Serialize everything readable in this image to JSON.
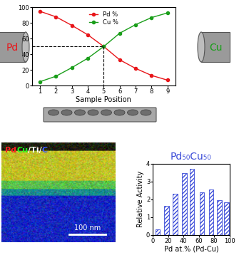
{
  "chart_data": [
    {
      "type": "line",
      "x": [
        1,
        2,
        3,
        4,
        5,
        6,
        7,
        8,
        9
      ],
      "xlim": [
        0.5,
        9.5
      ],
      "xticks": [
        1,
        2,
        3,
        4,
        5,
        6,
        7,
        8,
        9
      ],
      "x_label": "Sample Position",
      "ylim": [
        0,
        100
      ],
      "yticks": [
        0,
        20,
        40,
        60,
        80,
        100
      ],
      "legend": "upper center",
      "marker": "circle",
      "series": [
        {
          "name": "Pd %",
          "color": "#e8161a",
          "values": [
            95,
            88,
            77,
            65,
            50,
            33,
            22,
            13,
            7
          ]
        },
        {
          "name": "Cu %",
          "color": "#1a9e1a",
          "values": [
            5,
            12,
            23,
            35,
            50,
            67,
            78,
            87,
            93
          ]
        }
      ],
      "reference_lines": {
        "x": 5,
        "y": 50
      }
    },
    {
      "type": "bar",
      "title": "Pd₅₀Cu₅₀",
      "x_label": "Pd at.% (Pd-Cu)",
      "y_label": "Relative Activity",
      "x": [
        6,
        18,
        29,
        41,
        51,
        64,
        76,
        87,
        96
      ],
      "values": [
        0.3,
        1.65,
        2.3,
        3.45,
        3.7,
        2.4,
        2.55,
        1.95,
        1.85
      ],
      "color": "#3a4bd8",
      "xlim": [
        0,
        100
      ],
      "xticks": [
        0,
        20,
        40,
        60,
        80,
        100
      ],
      "ylim": [
        0,
        4
      ],
      "yticks": [
        0,
        1,
        2,
        3,
        4
      ]
    }
  ],
  "diagram": {
    "targets": [
      {
        "label": "Pd",
        "color": "#e8161a"
      },
      {
        "label": "Cu",
        "color": "#1a9e1a"
      }
    ],
    "eds_map": {
      "legend": [
        {
          "text": "Pd",
          "color": "#ff2020"
        },
        {
          "text": "Cu",
          "color": "#20ff20"
        },
        {
          "text": "/Ti/",
          "color": "#ffffff"
        },
        {
          "text": "C",
          "color": "#4060ff"
        }
      ],
      "scale_bar": "100 nm"
    }
  }
}
